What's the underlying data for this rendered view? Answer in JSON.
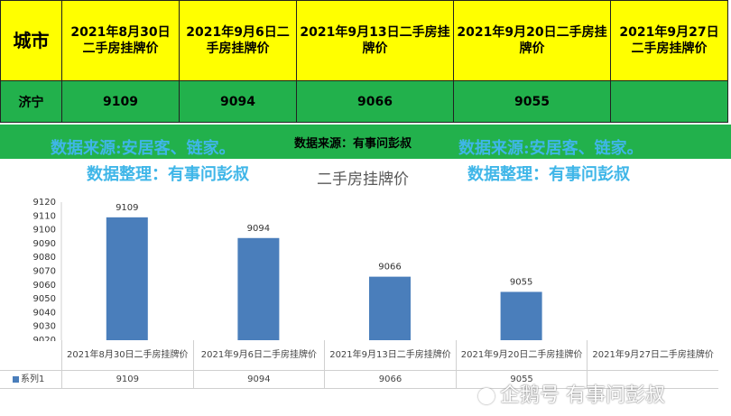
{
  "table": {
    "city_header": "城市",
    "date_headers": [
      "2021年8月30日二手房挂牌价",
      "2021年9月6日二手房挂牌价",
      "2021年9月13日二手房挂牌价",
      "2021年9月20日二手房挂牌价",
      "2021年9月27日二手房挂牌价"
    ],
    "city": "济宁",
    "prices": [
      "9109",
      "9094",
      "9066",
      "9055",
      ""
    ]
  },
  "banner": {
    "source_small": "数据来源：有事问彭叔",
    "source_big": "数据来源:安居客、链家。",
    "organizer": "数据整理：有事问彭叔"
  },
  "chart_data": {
    "type": "bar",
    "title": "二手房挂牌价",
    "categories": [
      "2021年8月30日二手房挂牌价",
      "2021年9月6日二手房挂牌价",
      "2021年9月13日二手房挂牌价",
      "2021年9月20日二手房挂牌价",
      "2021年9月27日二手房挂牌价"
    ],
    "series": [
      {
        "name": "系列1",
        "values": [
          9109,
          9094,
          9066,
          9055,
          null
        ]
      }
    ],
    "ylim": [
      9020,
      9120
    ],
    "yticks": [
      9020,
      9030,
      9040,
      9050,
      9060,
      9070,
      9080,
      9090,
      9100,
      9110,
      9120
    ],
    "bar_color": "#4a7ebb",
    "legend": "data-table"
  },
  "watermark": "企鹅号 有事问彭叔"
}
